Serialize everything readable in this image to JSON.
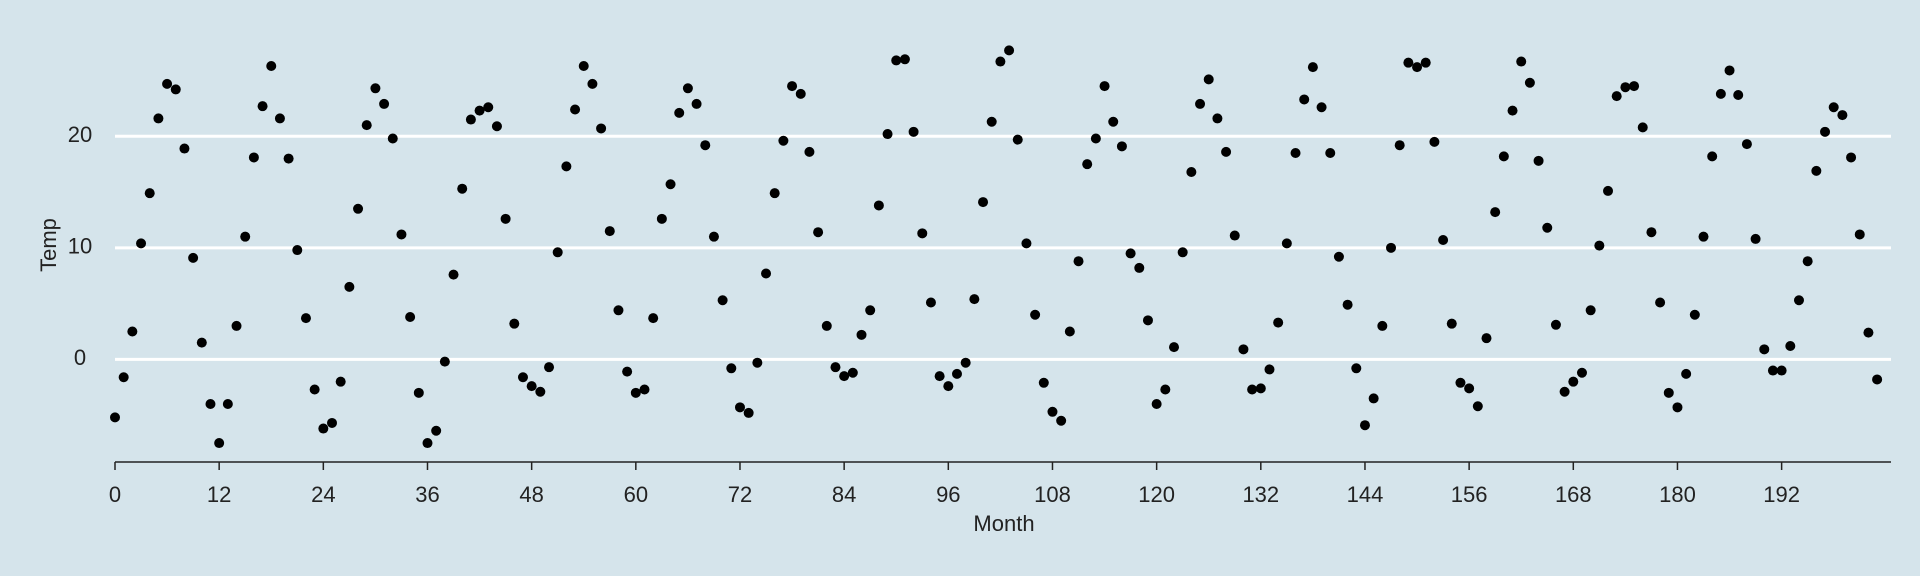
{
  "chart_data": {
    "type": "scatter",
    "x_label": "Month",
    "y_label": "Temp",
    "color": "#000000",
    "background": "#d5e4eb",
    "grid": true,
    "x": [
      0,
      1,
      2,
      3,
      4,
      5,
      6,
      7,
      8,
      9,
      10,
      11,
      12,
      13,
      14,
      15,
      16,
      17,
      18,
      19,
      20,
      21,
      22,
      23,
      24,
      25,
      26,
      27,
      28,
      29,
      30,
      31,
      32,
      33,
      34,
      35,
      36,
      37,
      38,
      39,
      40,
      41,
      42,
      43,
      44,
      45,
      46,
      47,
      48,
      49,
      50,
      51,
      52,
      53,
      54,
      55,
      56,
      57,
      58,
      59,
      60,
      61,
      62,
      63,
      64,
      65,
      66,
      67,
      68,
      69,
      70,
      71,
      72,
      73,
      74,
      75,
      76,
      77,
      78,
      79,
      80,
      81,
      82,
      83,
      84,
      85,
      86,
      87,
      88,
      89,
      90,
      91,
      92,
      93,
      94,
      95,
      96,
      97,
      98,
      99,
      100,
      101,
      102,
      103,
      104,
      105,
      106,
      107,
      108,
      109,
      110,
      111,
      112,
      113,
      114,
      115,
      116,
      117,
      118,
      119,
      120,
      121,
      122,
      123,
      124,
      125,
      126,
      127,
      128,
      129,
      130,
      131,
      132,
      133,
      134,
      135,
      136,
      137,
      138,
      139,
      140,
      141,
      142,
      143,
      144,
      145,
      146,
      147,
      148,
      149,
      150,
      151,
      152,
      153,
      154,
      155,
      156,
      157,
      158,
      159,
      160,
      161,
      162,
      163,
      164,
      165,
      166,
      167,
      168,
      169,
      170,
      171,
      172,
      173,
      174,
      175,
      176,
      177,
      178,
      179,
      180,
      181,
      182,
      183,
      184,
      185,
      186,
      187,
      188,
      189,
      190,
      191,
      192,
      193,
      194,
      195,
      196,
      197,
      198,
      199,
      200,
      201,
      202,
      203
    ],
    "values": [
      -5.2,
      -1.6,
      2.5,
      10.4,
      14.9,
      21.6,
      24.7,
      24.2,
      18.9,
      9.1,
      1.5,
      -4.0,
      -7.5,
      -4.0,
      3.0,
      11.0,
      18.1,
      22.7,
      26.3,
      21.6,
      18.0,
      9.8,
      3.7,
      -2.7,
      -6.2,
      -5.7,
      -2.0,
      6.5,
      13.5,
      21.0,
      24.3,
      22.9,
      19.8,
      11.2,
      3.8,
      -3.0,
      -7.5,
      -6.4,
      -0.2,
      7.6,
      15.3,
      21.5,
      22.3,
      22.6,
      20.9,
      12.6,
      3.2,
      -1.6,
      -2.4,
      -2.9,
      -0.7,
      9.6,
      17.3,
      22.4,
      26.3,
      24.7,
      20.7,
      11.5,
      4.4,
      -1.1,
      -3.0,
      -2.7,
      3.7,
      12.6,
      15.7,
      22.1,
      24.3,
      22.9,
      19.2,
      11.0,
      5.3,
      -0.8,
      -4.3,
      -4.8,
      -0.3,
      7.7,
      14.9,
      19.6,
      24.5,
      23.8,
      18.6,
      11.4,
      3.0,
      -0.7,
      -1.5,
      -1.2,
      2.2,
      4.4,
      13.8,
      20.2,
      26.8,
      26.9,
      20.4,
      11.3,
      5.1,
      -1.5,
      -2.4,
      -1.3,
      -0.3,
      5.4,
      14.1,
      21.3,
      26.7,
      27.7,
      19.7,
      10.4,
      4.0,
      -2.1,
      -4.7,
      -5.5,
      2.5,
      8.8,
      17.5,
      19.8,
      24.5,
      21.3,
      19.1,
      9.5,
      8.2,
      3.5,
      -4.0,
      -2.7,
      1.1,
      9.6,
      16.8,
      22.9,
      25.1,
      21.6,
      18.6,
      11.1,
      0.9,
      -2.7,
      -2.6,
      -0.9,
      3.3,
      10.4,
      18.5,
      23.3,
      26.2,
      22.6,
      18.5,
      9.2,
      4.9,
      -0.8,
      -5.9,
      -3.5,
      3.0,
      10.0,
      19.2,
      26.6,
      26.2,
      26.6,
      19.5,
      10.7,
      3.2,
      -2.1,
      -2.6,
      -4.2,
      1.9,
      13.2,
      18.2,
      22.3,
      26.7,
      24.8,
      17.8,
      11.8,
      3.1,
      -2.9,
      -2.0,
      -1.2,
      4.4,
      10.2,
      15.1,
      23.6,
      24.4,
      24.5,
      20.8,
      11.4,
      5.1,
      -3.0,
      -4.3,
      -1.3,
      4.0,
      11.0,
      18.2,
      23.8,
      25.9,
      23.7,
      19.3,
      10.8,
      0.9,
      -1.0,
      -1.0,
      1.2,
      5.3,
      8.8,
      16.9,
      20.4,
      22.6,
      21.9,
      18.1,
      11.2,
      2.4,
      -1.8
    ],
    "xlim": [
      0,
      204.6
    ],
    "ylim": [
      -9.2,
      28.9
    ],
    "xticks": [
      0,
      12,
      24,
      36,
      48,
      60,
      72,
      84,
      96,
      108,
      120,
      132,
      144,
      156,
      168,
      180,
      192
    ],
    "yticks": [
      0,
      10,
      20
    ]
  }
}
